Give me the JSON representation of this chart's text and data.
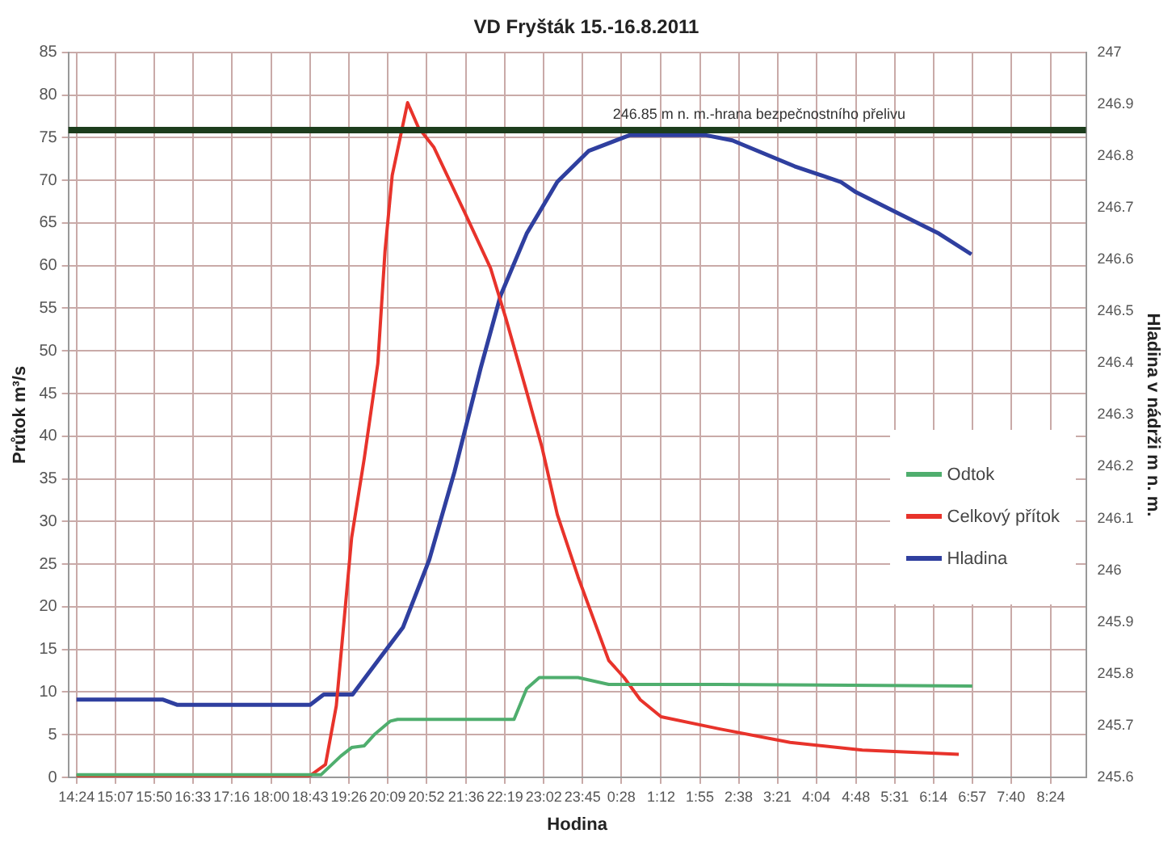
{
  "chart_data": {
    "type": "line",
    "title": "VD Fryšták 15.-16.8.2011",
    "xlabel": "Hodina",
    "ylabel": "Průtok m³/s",
    "y2label": "Hladina v nádrži m n. m.",
    "xlim": [
      "2011-08-15T14:15",
      "2011-08-16T09:03"
    ],
    "xticks": [
      {
        "value": "2011-08-15T14:24",
        "label": "14:24"
      },
      {
        "value": "2011-08-15T15:07",
        "label": "15:07"
      },
      {
        "value": "2011-08-15T15:50",
        "label": "15:50"
      },
      {
        "value": "2011-08-15T16:33",
        "label": "16:33"
      },
      {
        "value": "2011-08-15T17:16",
        "label": "17:16"
      },
      {
        "value": "2011-08-15T18:00",
        "label": "18:00"
      },
      {
        "value": "2011-08-15T18:43",
        "label": "18:43"
      },
      {
        "value": "2011-08-15T19:26",
        "label": "19:26"
      },
      {
        "value": "2011-08-15T20:09",
        "label": "20:09"
      },
      {
        "value": "2011-08-15T20:52",
        "label": "20:52"
      },
      {
        "value": "2011-08-15T21:36",
        "label": "21:36"
      },
      {
        "value": "2011-08-15T22:19",
        "label": "22:19"
      },
      {
        "value": "2011-08-15T23:02",
        "label": "23:02"
      },
      {
        "value": "2011-08-15T23:45",
        "label": "23:45"
      },
      {
        "value": "2011-08-16T00:28",
        "label": "0:28"
      },
      {
        "value": "2011-08-16T01:12",
        "label": "1:12"
      },
      {
        "value": "2011-08-16T01:55",
        "label": "1:55"
      },
      {
        "value": "2011-08-16T02:38",
        "label": "2:38"
      },
      {
        "value": "2011-08-16T03:21",
        "label": "3:21"
      },
      {
        "value": "2011-08-16T04:04",
        "label": "4:04"
      },
      {
        "value": "2011-08-16T04:48",
        "label": "4:48"
      },
      {
        "value": "2011-08-16T05:31",
        "label": "5:31"
      },
      {
        "value": "2011-08-16T06:14",
        "label": "6:14"
      },
      {
        "value": "2011-08-16T06:57",
        "label": "6:57"
      },
      {
        "value": "2011-08-16T07:40",
        "label": "7:40"
      },
      {
        "value": "2011-08-16T08:24",
        "label": "8:24"
      }
    ],
    "ylim": [
      0,
      85
    ],
    "yticks": [
      0,
      5,
      10,
      15,
      20,
      25,
      30,
      35,
      40,
      45,
      50,
      55,
      60,
      65,
      70,
      75,
      80,
      85
    ],
    "y2lim": [
      245.6,
      247
    ],
    "y2ticks": [
      245.6,
      245.7,
      245.8,
      245.9,
      246,
      246.1,
      246.2,
      246.3,
      246.4,
      246.5,
      246.6,
      246.7,
      246.8,
      246.9,
      247
    ],
    "series": [
      {
        "name": "Odtok",
        "type": "line",
        "color": "#4fae6e",
        "x": [
          "2011-08-15T14:24",
          "2011-08-15T18:55",
          "2011-08-15T19:17",
          "2011-08-15T19:29",
          "2011-08-15T19:43",
          "2011-08-15T19:55",
          "2011-08-15T20:12",
          "2011-08-15T20:20",
          "2011-08-15T22:29",
          "2011-08-15T22:43",
          "2011-08-15T22:57",
          "2011-08-15T23:40",
          "2011-08-16T00:14",
          "2011-08-16T02:16",
          "2011-08-16T06:57"
        ],
        "values": [
          0.3,
          0.3,
          2.5,
          3.5,
          3.7,
          5.1,
          6.6,
          6.8,
          6.8,
          10.4,
          11.7,
          11.7,
          10.9,
          10.9,
          10.7
        ]
      },
      {
        "name": "Celkový přítok",
        "type": "line",
        "color": "#e8332b",
        "x": [
          "2011-08-15T14:24",
          "2011-08-15T18:43",
          "2011-08-15T19:00",
          "2011-08-15T19:12",
          "2011-08-15T19:29",
          "2011-08-15T19:43",
          "2011-08-15T19:58",
          "2011-08-15T20:06",
          "2011-08-15T20:14",
          "2011-08-15T20:31",
          "2011-08-15T20:43",
          "2011-08-15T21:00",
          "2011-08-15T21:34",
          "2011-08-15T22:03",
          "2011-08-15T22:20",
          "2011-08-15T22:43",
          "2011-08-15T23:00",
          "2011-08-15T23:17",
          "2011-08-15T23:40",
          "2011-08-16T00:14",
          "2011-08-16T00:31",
          "2011-08-16T00:49",
          "2011-08-16T01:12",
          "2011-08-16T02:16",
          "2011-08-16T03:35",
          "2011-08-16T04:55",
          "2011-08-16T06:42"
        ],
        "values": [
          0.2,
          0.2,
          1.5,
          8.4,
          28.1,
          37.4,
          48.5,
          61.7,
          70.6,
          79.1,
          76.2,
          73.9,
          66.3,
          59.7,
          53.8,
          45.2,
          38.7,
          30.8,
          23.5,
          13.7,
          11.7,
          9.1,
          7.1,
          5.7,
          4.1,
          3.2,
          2.7
        ]
      },
      {
        "name": "Hladina",
        "type": "line",
        "axis": "y2",
        "color": "#2f3f9f",
        "x": [
          "2011-08-15T14:24",
          "2011-08-15T16:00",
          "2011-08-15T16:16",
          "2011-08-15T18:43",
          "2011-08-15T18:58",
          "2011-08-15T19:30",
          "2011-08-15T19:58",
          "2011-08-15T20:26",
          "2011-08-15T20:55",
          "2011-08-15T21:23",
          "2011-08-15T21:52",
          "2011-08-15T22:14",
          "2011-08-15T22:43",
          "2011-08-15T23:17",
          "2011-08-15T23:52",
          "2011-08-16T00:37",
          "2011-08-16T02:02",
          "2011-08-16T02:31",
          "2011-08-16T03:40",
          "2011-08-16T04:31",
          "2011-08-16T04:48",
          "2011-08-16T05:34",
          "2011-08-16T06:20",
          "2011-08-16T06:56"
        ],
        "values": [
          245.75,
          245.75,
          245.74,
          245.74,
          245.76,
          245.76,
          245.825,
          245.89,
          246.02,
          246.19,
          246.39,
          246.53,
          246.65,
          246.75,
          246.81,
          246.84,
          246.84,
          246.83,
          246.78,
          246.75,
          246.73,
          246.69,
          246.65,
          246.61
        ]
      }
    ],
    "ref_lines": [
      {
        "axis": "y2",
        "value": 246.85,
        "label": "246.85 m n. m.-hrana bezpečnostního přelivu",
        "color": "#1c3d1c"
      }
    ],
    "grid": true,
    "legend": "right",
    "marker": "none",
    "line_style": "solid"
  }
}
